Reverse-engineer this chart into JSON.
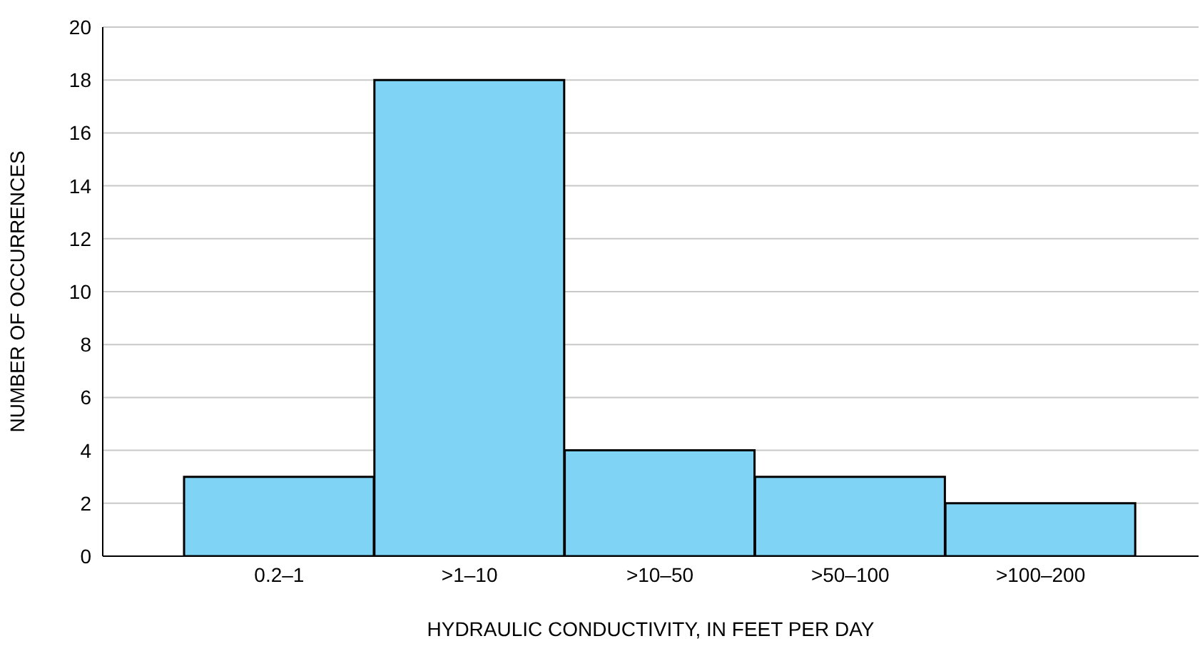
{
  "chart_data": {
    "type": "bar",
    "xlabel": "HYDRAULIC CONDUCTIVITY, IN FEET PER DAY",
    "ylabel": "NUMBER OF OCCURRENCES",
    "categories": [
      "0.2–1",
      ">1–10",
      ">10–50",
      ">50–100",
      ">100–200"
    ],
    "values": [
      3,
      18,
      4,
      3,
      2
    ],
    "color": "#7fd3f5",
    "ylim": [
      0,
      20
    ],
    "yticks": [
      0,
      2,
      4,
      6,
      8,
      10,
      12,
      14,
      16,
      18,
      20
    ],
    "grid": "y"
  }
}
